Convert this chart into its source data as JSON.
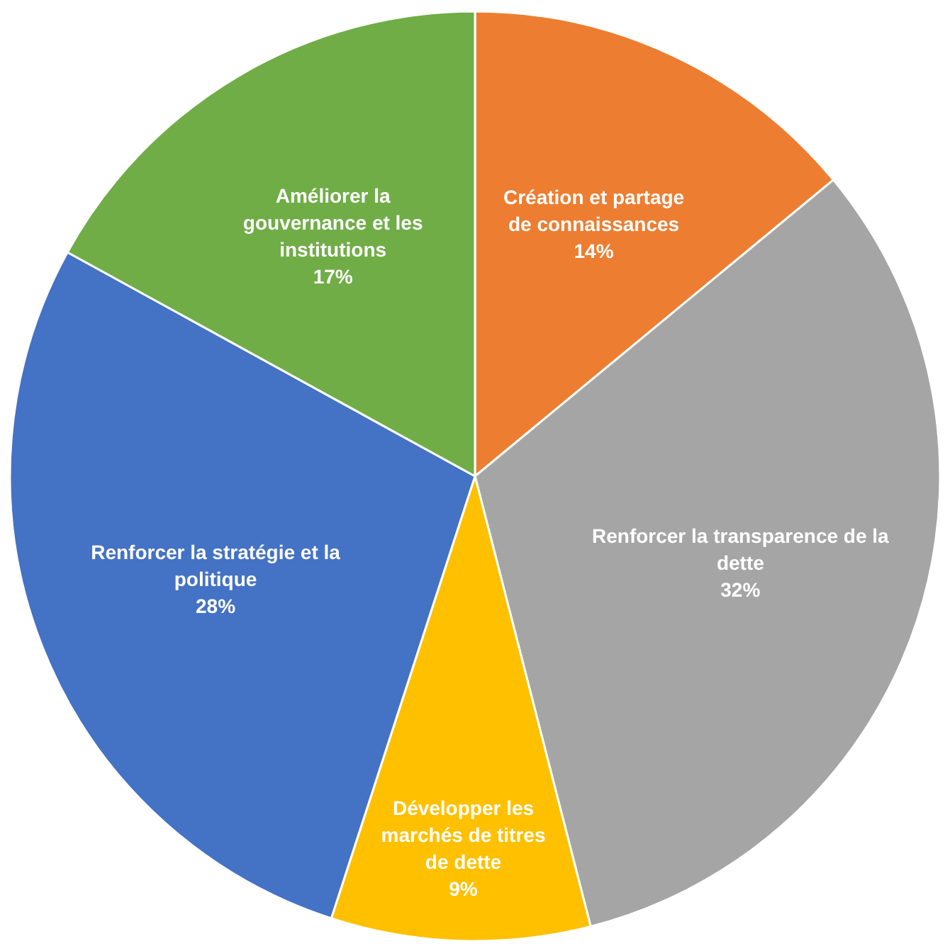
{
  "chart_data": {
    "type": "pie",
    "categories": [
      "Création et partage de connaissances",
      "Renforcer la transparence de la dette",
      "Développer les marchés de titres de dette",
      "Renforcer la stratégie et la politique",
      "Améliorer la gouvernance et les institutions"
    ],
    "values": [
      14,
      32,
      9,
      28,
      17
    ],
    "value_labels": [
      "14%",
      "32%",
      "9%",
      "28%",
      "17%"
    ],
    "colors": [
      "#ed7d31",
      "#a5a5a5",
      "#ffc000",
      "#4472c4",
      "#70ad47"
    ],
    "legend": false
  }
}
